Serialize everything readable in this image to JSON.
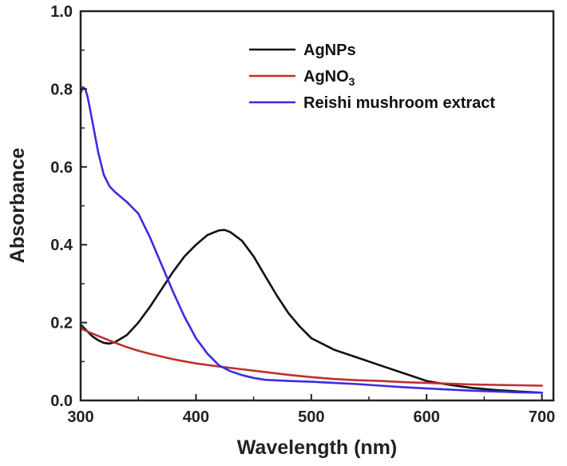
{
  "chart_data": {
    "type": "line",
    "xlabel": "Wavelength (nm)",
    "ylabel": "Absorbance",
    "xlim": [
      300,
      710
    ],
    "ylim": [
      0.0,
      1.0
    ],
    "xticks": [
      "300",
      "400",
      "500",
      "600",
      "700"
    ],
    "yticks": [
      "0.0",
      "0.2",
      "0.4",
      "0.6",
      "0.8",
      "1.0"
    ],
    "grid": false,
    "legend_position": "top-right",
    "series": [
      {
        "name": "AgNPs",
        "color": "#111111",
        "x": [
          300,
          305,
          310,
          315,
          320,
          325,
          330,
          340,
          350,
          360,
          370,
          380,
          390,
          400,
          410,
          420,
          425,
          430,
          440,
          450,
          460,
          470,
          480,
          490,
          500,
          520,
          540,
          560,
          580,
          600,
          620,
          640,
          660,
          680,
          700
        ],
        "y": [
          0.195,
          0.18,
          0.165,
          0.155,
          0.148,
          0.146,
          0.15,
          0.168,
          0.2,
          0.24,
          0.285,
          0.33,
          0.37,
          0.4,
          0.425,
          0.437,
          0.438,
          0.432,
          0.41,
          0.37,
          0.32,
          0.27,
          0.225,
          0.19,
          0.16,
          0.13,
          0.11,
          0.09,
          0.07,
          0.05,
          0.04,
          0.032,
          0.027,
          0.023,
          0.02
        ]
      },
      {
        "name": "AgNO",
        "name_subscript": "3",
        "color": "#c0302c",
        "x": [
          300,
          310,
          320,
          330,
          340,
          350,
          360,
          380,
          400,
          420,
          440,
          460,
          480,
          500,
          520,
          540,
          560,
          580,
          600,
          620,
          640,
          660,
          680,
          700
        ],
        "y": [
          0.185,
          0.172,
          0.16,
          0.148,
          0.137,
          0.128,
          0.12,
          0.106,
          0.095,
          0.087,
          0.08,
          0.073,
          0.066,
          0.06,
          0.055,
          0.052,
          0.05,
          0.047,
          0.045,
          0.043,
          0.041,
          0.04,
          0.039,
          0.038
        ]
      },
      {
        "name": "Reishi mushroom extract",
        "color": "#3a2de0",
        "x": [
          300,
          302,
          304,
          306,
          310,
          315,
          320,
          325,
          330,
          340,
          350,
          360,
          370,
          380,
          390,
          400,
          410,
          420,
          430,
          440,
          450,
          460,
          480,
          500,
          520,
          540,
          560,
          580,
          600,
          620,
          640,
          660,
          680,
          700
        ],
        "y": [
          0.79,
          0.805,
          0.8,
          0.78,
          0.72,
          0.64,
          0.58,
          0.55,
          0.535,
          0.51,
          0.48,
          0.42,
          0.35,
          0.28,
          0.215,
          0.16,
          0.12,
          0.09,
          0.075,
          0.065,
          0.058,
          0.053,
          0.05,
          0.048,
          0.045,
          0.042,
          0.038,
          0.034,
          0.031,
          0.028,
          0.025,
          0.023,
          0.021,
          0.02
        ]
      }
    ]
  }
}
